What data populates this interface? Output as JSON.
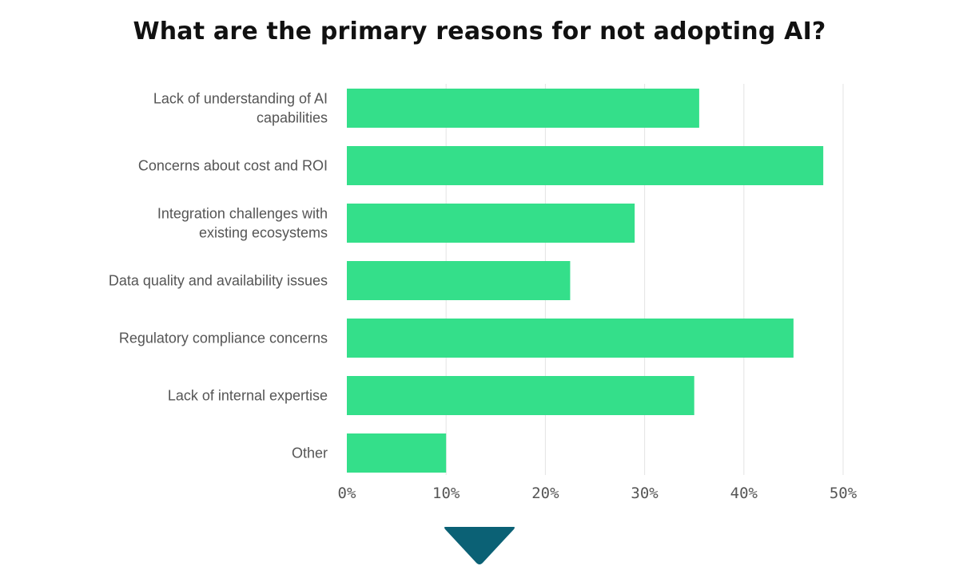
{
  "chart_data": {
    "type": "bar",
    "orientation": "horizontal",
    "title": "What are the primary reasons for not adopting AI?",
    "categories": [
      [
        "Lack of understanding of AI",
        "capabilities"
      ],
      [
        "Concerns about cost and ROI"
      ],
      [
        "Integration challenges with",
        "existing ecosystems"
      ],
      [
        "Data quality and availability issues"
      ],
      [
        "Regulatory compliance concerns"
      ],
      [
        "Lack of internal expertise"
      ],
      [
        "Other"
      ]
    ],
    "values": [
      35.5,
      48,
      29,
      22.5,
      45,
      35,
      10
    ],
    "xlim": [
      0,
      50
    ],
    "x_ticks": [
      0,
      10,
      20,
      30,
      40,
      50
    ],
    "x_tick_labels": [
      "0%",
      "10%",
      "20%",
      "30%",
      "40%",
      "50%"
    ],
    "grid": true,
    "bar_color": "#34df8a"
  },
  "nav": {
    "arrow_icon": "chevron-down-icon",
    "arrow_color": "#0b6175"
  }
}
